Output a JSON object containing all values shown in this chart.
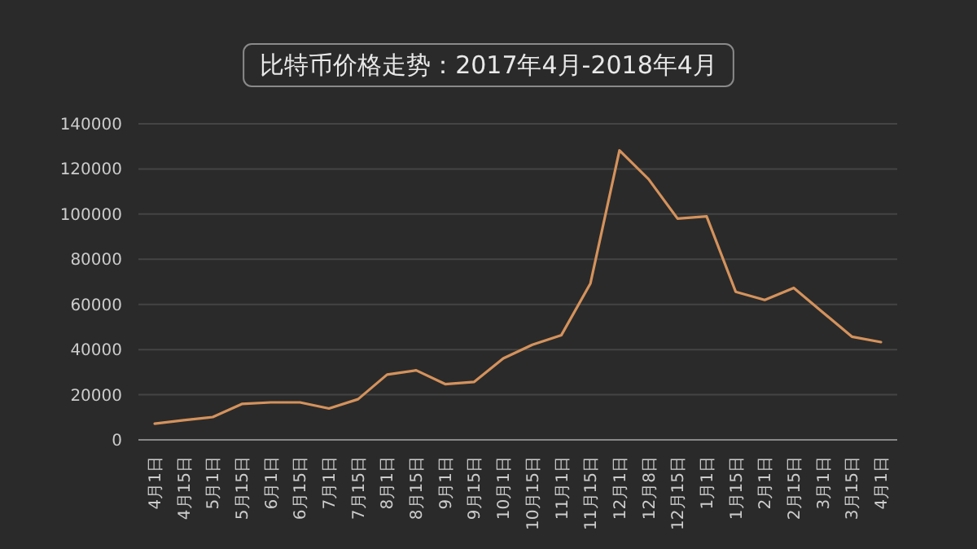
{
  "chart_data": {
    "type": "line",
    "title": "比特币价格走势：2017年4月-2018年4月",
    "categories": [
      "4月1日",
      "4月15日",
      "5月1日",
      "5月15日",
      "6月1日",
      "6月15日",
      "7月1日",
      "7月15日",
      "8月1日",
      "8月15日",
      "9月1日",
      "9月15日",
      "10月1日",
      "10月15日",
      "11月1日",
      "11月15日",
      "12月1日",
      "12月8日",
      "12月15日",
      "1月1日",
      "1月15日",
      "2月1日",
      "2月15日",
      "3月1日",
      "3月15日",
      "4月1日"
    ],
    "series": [
      {
        "color": "#d4925c",
        "values": [
          7200,
          8700,
          10100,
          15900,
          16600,
          16600,
          13900,
          18000,
          28900,
          30800,
          24700,
          25700,
          36100,
          42100,
          46400,
          69300,
          128200,
          115500,
          98000,
          99000,
          65600,
          62000,
          67300,
          56500,
          45700,
          43300
        ]
      }
    ],
    "ylim": [
      0,
      140000
    ],
    "yticks": [
      0,
      20000,
      40000,
      60000,
      80000,
      100000,
      120000,
      140000
    ],
    "grid": "y"
  }
}
